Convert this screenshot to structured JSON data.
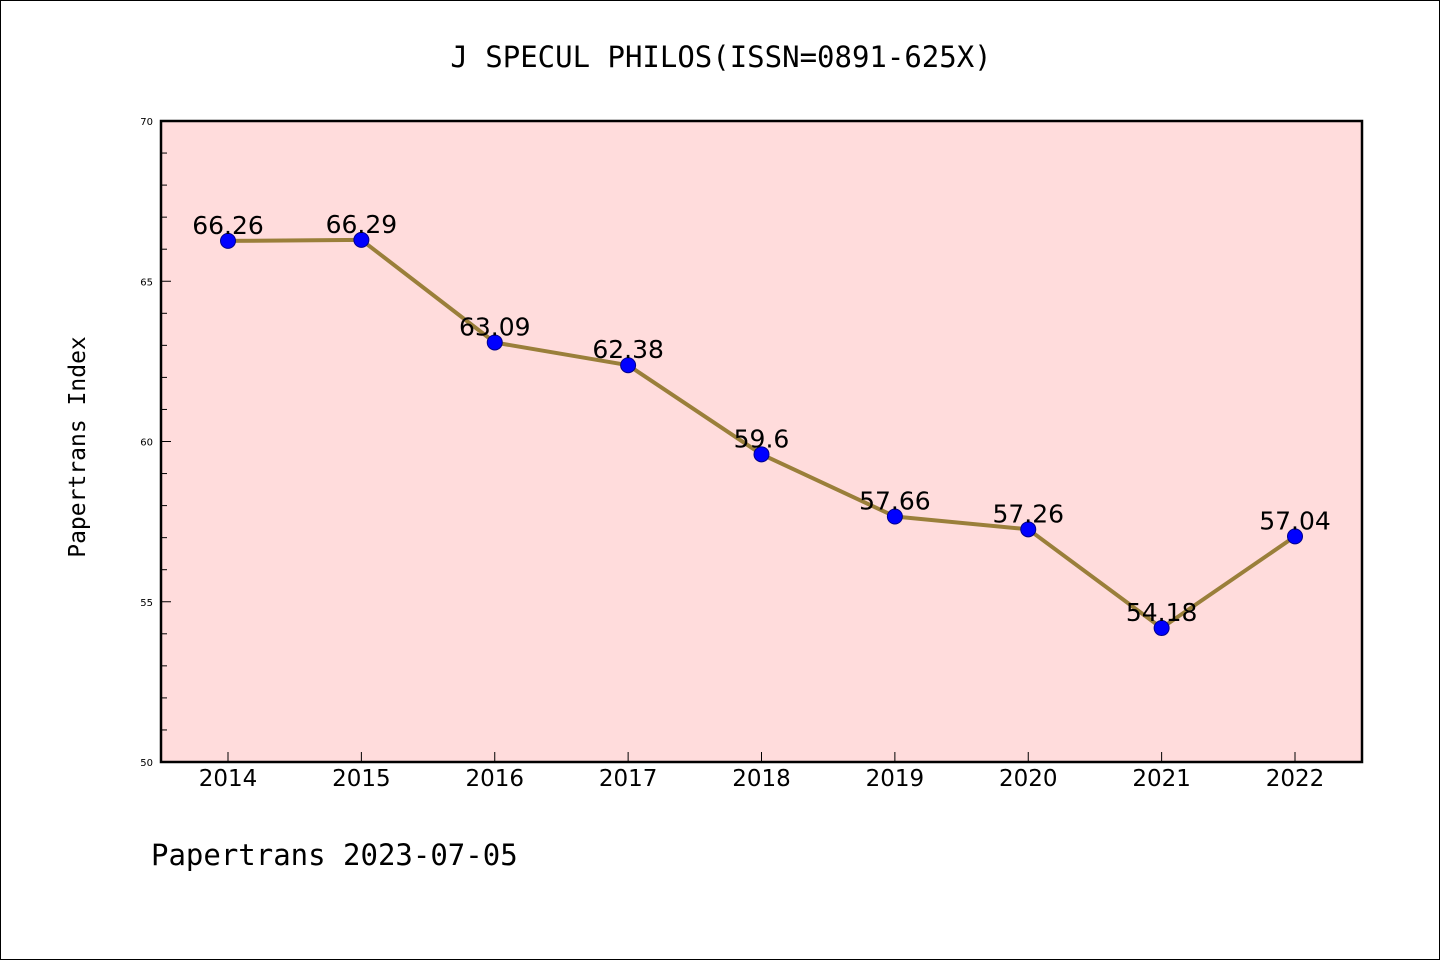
{
  "chart_data": {
    "type": "line",
    "title": "J SPECUL PHILOS(ISSN=0891-625X)",
    "xlabel": "",
    "ylabel": "Papertrans Index",
    "x": [
      "2014",
      "2015",
      "2016",
      "2017",
      "2018",
      "2019",
      "2020",
      "2021",
      "2022"
    ],
    "values": [
      66.26,
      66.29,
      63.09,
      62.38,
      59.6,
      57.66,
      57.26,
      54.18,
      57.04
    ],
    "data_labels": [
      "66.26",
      "66.29",
      "63.09",
      "62.38",
      "59.6",
      "57.66",
      "57.26",
      "54.18",
      "57.04"
    ],
    "ylim": [
      50,
      70
    ],
    "yticks": [
      50,
      55,
      60,
      65,
      70
    ],
    "grid": false,
    "legend": "none",
    "colors": {
      "plot_background": "#ffdcdc",
      "line": "#9a7f3a",
      "marker": "#0000ff"
    }
  },
  "footer": "Papertrans 2023-07-05"
}
